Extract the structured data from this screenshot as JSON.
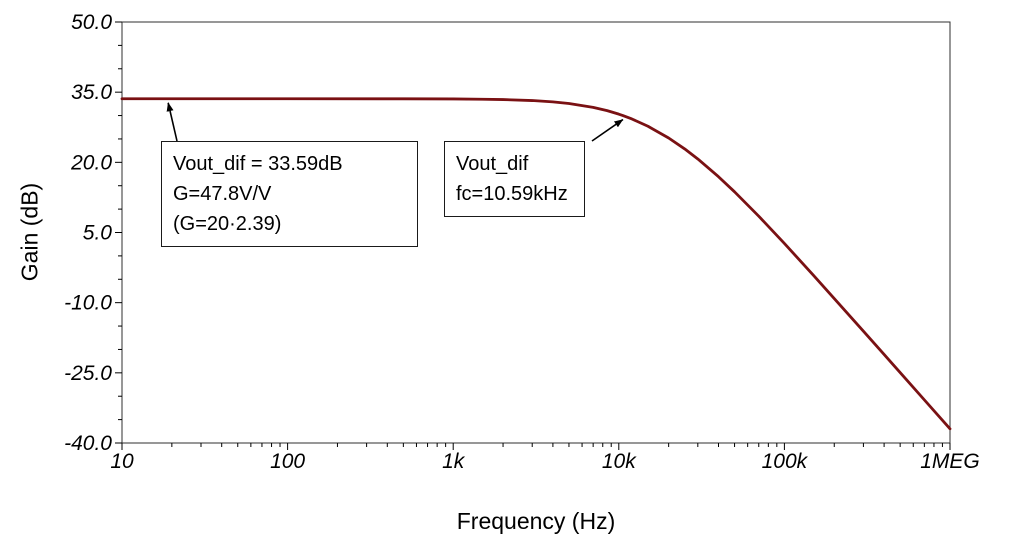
{
  "chart_data": {
    "type": "line",
    "title": "",
    "xlabel": "Frequency (Hz)",
    "ylabel": "Gain (dB)",
    "x_scale": "log",
    "xlim": [
      10,
      1000000
    ],
    "ylim": [
      -40,
      50
    ],
    "grid": false,
    "x_ticks": [
      10,
      100,
      1000,
      10000,
      100000,
      1000000
    ],
    "x_tick_labels": [
      "10",
      "100",
      "1k",
      "10k",
      "100k",
      "1MEG"
    ],
    "y_ticks": [
      50,
      35,
      20,
      5,
      -10,
      -25,
      -40
    ],
    "y_tick_labels": [
      "50.0",
      "35.0",
      "20.0",
      "5.0",
      "-10.0",
      "-25.0",
      "-40.0"
    ],
    "series": [
      {
        "name": "Vout_dif",
        "color": "#7a1113",
        "points": {
          "f": [
            10,
            100,
            500,
            1000,
            1500,
            2000,
            3000,
            4000,
            5000,
            7000,
            8500,
            10000,
            10590,
            12000,
            15000,
            20000,
            25000,
            30000,
            40000,
            50000,
            70000,
            100000,
            150000,
            200000,
            300000,
            400000,
            500000,
            700000,
            1000000
          ],
          "gain_db": [
            33.59,
            33.59,
            33.58,
            33.55,
            33.49,
            33.42,
            33.21,
            32.92,
            32.58,
            31.75,
            31.05,
            30.3,
            30.0,
            29.27,
            27.71,
            25.2,
            22.87,
            20.72,
            16.92,
            13.7,
            8.49,
            2.66,
            -4.18,
            -9.11,
            -16.1,
            -21.07,
            -24.94,
            -30.78,
            -36.97
          ]
        }
      }
    ],
    "annotations": [
      {
        "lines": [
          "Vout_dif = 33.59dB",
          "G=47.8V/V",
          "(G=20·2.39)"
        ],
        "target_f": 19,
        "target_gain_db": 33.59
      },
      {
        "lines": [
          "Vout_dif",
          "fc=10.59kHz"
        ],
        "target_f": 10590,
        "target_gain_db": 30.0
      }
    ]
  }
}
